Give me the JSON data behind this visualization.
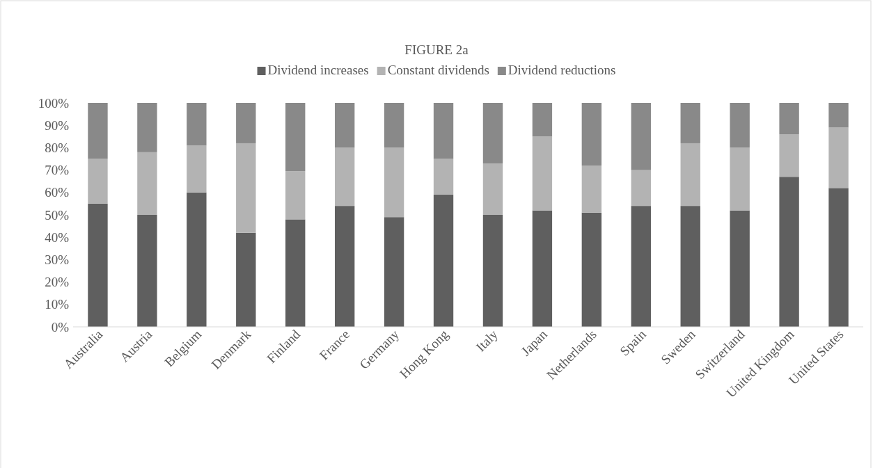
{
  "chart_data": {
    "type": "bar",
    "title": "FIGURE 2a",
    "stacked": true,
    "legend": "top",
    "categories": [
      "Australia",
      "Austria",
      "Belgium",
      "Denmark",
      "Finland",
      "France",
      "Germany",
      "Hong Kong",
      "Italy",
      "Japan",
      "Netherlands",
      "Spain",
      "Sweden",
      "Switzerland",
      "United Kingdom",
      "United States"
    ],
    "series": [
      {
        "name": "Dividend increases",
        "color": "#5f5f5f",
        "values": [
          55,
          50,
          60,
          42,
          48,
          54,
          49,
          59,
          50,
          52,
          51,
          54,
          54,
          52,
          67,
          62
        ]
      },
      {
        "name": "Constant dividends",
        "color": "#b3b3b3",
        "values": [
          20,
          28,
          21,
          40,
          21.5,
          26,
          31,
          16,
          23,
          33,
          21,
          16,
          28,
          28,
          19,
          27
        ]
      },
      {
        "name": "Dividend reductions",
        "color": "#898989",
        "values": [
          25,
          22,
          19,
          18,
          30.5,
          20,
          20,
          25,
          27,
          15,
          28,
          30,
          18,
          20,
          14,
          11
        ]
      }
    ],
    "ylim": [
      0,
      100
    ],
    "yticks": [
      {
        "value": 0,
        "label": "0%"
      },
      {
        "value": 10,
        "label": "10%"
      },
      {
        "value": 20,
        "label": "20%"
      },
      {
        "value": 30,
        "label": "30%"
      },
      {
        "value": 40,
        "label": "40%"
      },
      {
        "value": 50,
        "label": "50%"
      },
      {
        "value": 60,
        "label": "60%"
      },
      {
        "value": 70,
        "label": "70%"
      },
      {
        "value": 80,
        "label": "80%"
      },
      {
        "value": 90,
        "label": "90%"
      },
      {
        "value": 100,
        "label": "100%"
      }
    ]
  }
}
